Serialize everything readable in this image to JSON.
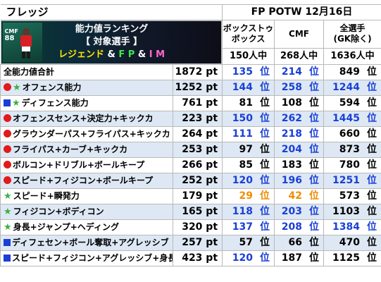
{
  "header": {
    "player_name": "フレッジ",
    "title": "FP POTW 12月16日"
  },
  "banner": {
    "card_position": "CMF",
    "card_rating": "88",
    "line1": "能力値ランキング",
    "line2": "【 対象選手 】",
    "line3_legend": "レジェンド",
    "line3_amp1": " & ",
    "line3_fp": "F P",
    "line3_amp2": " & ",
    "line3_im": "I M"
  },
  "columns": [
    {
      "head": "ボックストゥ\nボックス",
      "count": "150人中"
    },
    {
      "head": "CMF",
      "count": "268人中"
    },
    {
      "head": "全選手\n(GK除く)",
      "count": "1636人中"
    }
  ],
  "rank_unit": "位",
  "rows": [
    {
      "marker": "none",
      "label": "全能力値合計",
      "pt": "1872 pt",
      "r1": "135",
      "r2": "214",
      "r3": "849",
      "r1_color": "blue",
      "r2_color": "blue",
      "r3_color": "black"
    },
    {
      "marker": "dot-star",
      "label": "オフェンス能力",
      "pt": "1252 pt",
      "r1": "144",
      "r2": "258",
      "r3": "1244",
      "r1_color": "blue",
      "r2_color": "blue",
      "r3_color": "blue"
    },
    {
      "marker": "sq-star",
      "label": "ディフェンス能力",
      "pt": "761 pt",
      "r1": "81",
      "r2": "108",
      "r3": "594",
      "r1_color": "black",
      "r2_color": "black",
      "r3_color": "black"
    },
    {
      "marker": "dot",
      "label": "オフェンスセンス+決定力+キックカ",
      "pt": "223 pt",
      "r1": "150",
      "r2": "262",
      "r3": "1445",
      "r1_color": "blue",
      "r2_color": "blue",
      "r3_color": "blue"
    },
    {
      "marker": "dot",
      "label": "グラウンダーパス+フライパス+キックカ",
      "pt": "264 pt",
      "r1": "111",
      "r2": "218",
      "r3": "660",
      "r1_color": "blue",
      "r2_color": "blue",
      "r3_color": "black"
    },
    {
      "marker": "dot",
      "label": "フライパス+カーブ+キックカ",
      "pt": "253 pt",
      "r1": "97",
      "r2": "204",
      "r3": "873",
      "r1_color": "black",
      "r2_color": "blue",
      "r3_color": "black"
    },
    {
      "marker": "dot",
      "label": "ボルコン+ドリブル+ボールキープ",
      "pt": "266 pt",
      "r1": "85",
      "r2": "183",
      "r3": "780",
      "r1_color": "black",
      "r2_color": "black",
      "r3_color": "black"
    },
    {
      "marker": "dot",
      "label": "スピード+フィジコン+ボールキープ",
      "pt": "252 pt",
      "r1": "120",
      "r2": "196",
      "r3": "1251",
      "r1_color": "blue",
      "r2_color": "blue",
      "r3_color": "blue"
    },
    {
      "marker": "star",
      "label": "スピード+瞬発力",
      "pt": "179 pt",
      "r1": "29",
      "r2": "42",
      "r3": "573",
      "r1_color": "orange",
      "r2_color": "orange",
      "r3_color": "black"
    },
    {
      "marker": "star",
      "label": "フィジコン+ボディコン",
      "pt": "165 pt",
      "r1": "118",
      "r2": "203",
      "r3": "1103",
      "r1_color": "blue",
      "r2_color": "blue",
      "r3_color": "black"
    },
    {
      "marker": "star",
      "label": "身長+ジャンプ+ヘディング",
      "pt": "320 pt",
      "r1": "137",
      "r2": "208",
      "r3": "1384",
      "r1_color": "blue",
      "r2_color": "blue",
      "r3_color": "blue"
    },
    {
      "marker": "sq",
      "label": "ディフェセン+ボール奪取+アグレッシブ",
      "pt": "257 pt",
      "r1": "57",
      "r2": "66",
      "r3": "470",
      "r1_color": "black",
      "r2_color": "black",
      "r3_color": "black"
    },
    {
      "marker": "sq",
      "label": "スピード+フィジコン+アグレッシブ+身長",
      "pt": "423 pt",
      "r1": "120",
      "r2": "187",
      "r3": "1125",
      "r1_color": "blue",
      "r2_color": "black",
      "r3_color": "black"
    }
  ]
}
